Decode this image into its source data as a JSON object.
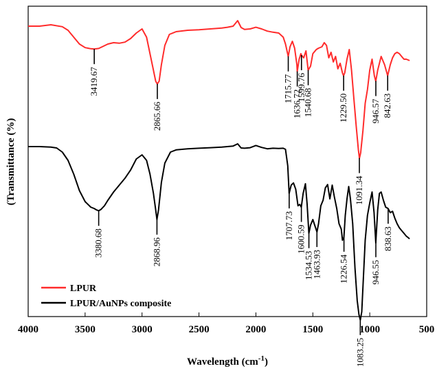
{
  "chart_data": {
    "type": "line",
    "title": "",
    "xlabel": "Wavelength (cm",
    "xlabel_sup": "-1",
    "xlabel_end": ")",
    "ylabel": "(Transmittance (%)",
    "xlim": [
      4000,
      500
    ],
    "x_reversed": true,
    "x_ticks": [
      4000,
      3500,
      3000,
      2500,
      2000,
      1500,
      1000,
      500
    ],
    "y_ticks": [],
    "grid": false,
    "legend_position": "bottom-left",
    "series": [
      {
        "name": "LPUR",
        "color": "#ff2b2b",
        "x": [
          4000,
          3900,
          3800,
          3700,
          3650,
          3600,
          3550,
          3500,
          3450,
          3420,
          3380,
          3350,
          3300,
          3250,
          3200,
          3150,
          3100,
          3050,
          3000,
          2960,
          2930,
          2900,
          2880,
          2866,
          2850,
          2830,
          2800,
          2760,
          2700,
          2600,
          2500,
          2400,
          2300,
          2250,
          2200,
          2160,
          2130,
          2100,
          2050,
          2000,
          1950,
          1900,
          1850,
          1800,
          1760,
          1740,
          1716,
          1700,
          1680,
          1660,
          1640,
          1637,
          1620,
          1605,
          1600,
          1580,
          1560,
          1541,
          1520,
          1500,
          1470,
          1450,
          1420,
          1400,
          1380,
          1360,
          1340,
          1320,
          1300,
          1280,
          1260,
          1240,
          1230,
          1220,
          1200,
          1180,
          1160,
          1140,
          1120,
          1100,
          1091,
          1080,
          1060,
          1040,
          1020,
          1000,
          980,
          960,
          947,
          930,
          900,
          870,
          843,
          820,
          800,
          780,
          760,
          740,
          720,
          700,
          680,
          650
        ],
        "y": [
          100,
          100,
          100.5,
          99.8,
          98.5,
          96,
          93.5,
          92.2,
          91.8,
          91.7,
          91.9,
          92.5,
          93.5,
          94,
          93.8,
          94.2,
          95.5,
          97.5,
          99,
          96,
          90,
          84,
          80,
          79,
          80,
          86,
          93,
          97,
          98,
          98.5,
          98.7,
          99,
          99.3,
          99.6,
          100,
          102,
          99.5,
          98.8,
          99,
          99.6,
          99,
          98.2,
          97.8,
          97.5,
          96,
          93.5,
          89,
          92.5,
          94.5,
          92,
          86,
          83.5,
          88,
          90,
          89.5,
          88.5,
          91,
          84,
          85.5,
          90,
          91.5,
          92,
          92.5,
          94,
          93,
          88.5,
          90.5,
          87,
          89,
          84.5,
          86.5,
          83,
          82,
          83,
          88,
          91.5,
          84,
          74,
          64,
          55,
          52,
          54,
          62,
          72,
          77,
          84,
          88,
          82,
          80,
          84,
          89,
          86,
          82,
          86,
          88.5,
          90,
          90.5,
          90,
          89,
          88,
          88,
          87.5
        ]
      },
      {
        "name": "LPUR/AuNPs composite",
        "color": "#000000",
        "x": [
          4000,
          3900,
          3800,
          3750,
          3700,
          3650,
          3600,
          3550,
          3500,
          3450,
          3420,
          3400,
          3381,
          3360,
          3330,
          3300,
          3250,
          3200,
          3150,
          3100,
          3050,
          3000,
          2960,
          2930,
          2900,
          2880,
          2869,
          2855,
          2830,
          2800,
          2750,
          2700,
          2600,
          2500,
          2400,
          2300,
          2250,
          2200,
          2160,
          2130,
          2100,
          2050,
          2000,
          1950,
          1900,
          1850,
          1800,
          1760,
          1740,
          1720,
          1708,
          1690,
          1670,
          1650,
          1630,
          1615,
          1601,
          1585,
          1565,
          1550,
          1535,
          1520,
          1500,
          1480,
          1464,
          1450,
          1430,
          1410,
          1390,
          1370,
          1350,
          1330,
          1310,
          1290,
          1270,
          1250,
          1240,
          1227,
          1215,
          1200,
          1185,
          1170,
          1150,
          1130,
          1110,
          1095,
          1083,
          1070,
          1055,
          1040,
          1020,
          1000,
          980,
          962,
          947,
          930,
          915,
          900,
          880,
          860,
          839,
          820,
          800,
          780,
          760,
          740,
          720,
          700,
          680,
          650
        ],
        "y": [
          100,
          100,
          99.8,
          99.5,
          98,
          95,
          90,
          84,
          80,
          78,
          77.5,
          77,
          76.7,
          77.2,
          78.5,
          80.5,
          83.5,
          86,
          88.5,
          91.5,
          95.5,
          97,
          95,
          90,
          83,
          77,
          73.5,
          77,
          87,
          94,
          98,
          98.8,
          99.2,
          99.4,
          99.6,
          99.8,
          100,
          100.2,
          101,
          99.5,
          99.4,
          99.6,
          100.4,
          99.7,
          99.2,
          99.4,
          99.3,
          99.4,
          99,
          93,
          83,
          86,
          86.8,
          84.5,
          78.5,
          79,
          78,
          83,
          86.5,
          79,
          68.5,
          71.5,
          73.5,
          71,
          69,
          72,
          78.5,
          80.5,
          85,
          86.2,
          81,
          86,
          81.5,
          77.5,
          72,
          70,
          66,
          67,
          75,
          81,
          85.5,
          81,
          72,
          56,
          44,
          39,
          37,
          40,
          53,
          66,
          75,
          79.5,
          83.5,
          76,
          65,
          77,
          83,
          83.5,
          80.5,
          78,
          77.5,
          76,
          76.5,
          74,
          72,
          70.5,
          69.5,
          68.5,
          67.5,
          66.5
        ]
      }
    ],
    "annotations": [
      {
        "series": 0,
        "x": 3419.67,
        "text": "3419.67",
        "dir": "down"
      },
      {
        "series": 0,
        "x": 2865.66,
        "text": "2865.66",
        "dir": "down"
      },
      {
        "series": 0,
        "x": 1715.77,
        "text": "1715.77",
        "dir": "down"
      },
      {
        "series": 0,
        "x": 1636.72,
        "text": "1636.72",
        "dir": "down"
      },
      {
        "series": 0,
        "x": 1599.76,
        "text": "1599.76",
        "dir": "down"
      },
      {
        "series": 0,
        "x": 1540.68,
        "text": "1540.68",
        "dir": "down"
      },
      {
        "series": 0,
        "x": 1229.5,
        "text": "1229.50",
        "dir": "down"
      },
      {
        "series": 0,
        "x": 1091.34,
        "text": "1091.34",
        "dir": "down"
      },
      {
        "series": 0,
        "x": 946.57,
        "text": "946.57",
        "dir": "down"
      },
      {
        "series": 0,
        "x": 842.63,
        "text": "842.63",
        "dir": "down"
      },
      {
        "series": 1,
        "x": 3380.68,
        "text": "3380.68",
        "dir": "down"
      },
      {
        "series": 1,
        "x": 2868.96,
        "text": "2868.96",
        "dir": "down"
      },
      {
        "series": 1,
        "x": 1707.73,
        "text": "1707.73",
        "dir": "down"
      },
      {
        "series": 1,
        "x": 1600.59,
        "text": "1600.59",
        "dir": "down"
      },
      {
        "series": 1,
        "x": 1534.53,
        "text": "1534.53",
        "dir": "down"
      },
      {
        "series": 1,
        "x": 1463.93,
        "text": "1463.93",
        "dir": "down"
      },
      {
        "series": 1,
        "x": 1226.54,
        "text": "1226.54",
        "dir": "down"
      },
      {
        "series": 1,
        "x": 1083.25,
        "text": "1083.25",
        "dir": "down"
      },
      {
        "series": 1,
        "x": 946.55,
        "text": "946.55",
        "dir": "down"
      },
      {
        "series": 1,
        "x": 838.63,
        "text": "838.63",
        "dir": "down"
      }
    ]
  }
}
